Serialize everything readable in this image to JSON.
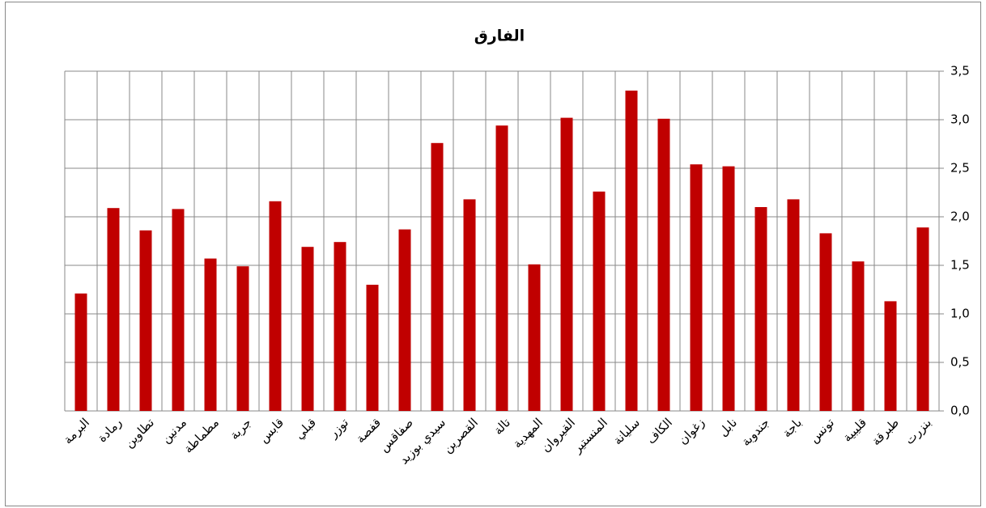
{
  "chart_data": {
    "type": "bar",
    "title": "الفارق",
    "categories": [
      "البرمة",
      "رمادة",
      "تطاوين",
      "مدنين",
      "مطماطة",
      "جربة",
      "قابس",
      "قبلي",
      "توزر",
      "قفصة",
      "صفاقس",
      "سيدي بوزيد",
      "القصرين",
      "تالة",
      "المهدية",
      "القيروان",
      "المنستير",
      "سليانة",
      "الكاف",
      "زغوان",
      "نابل",
      "جندوبة",
      "باجة",
      "تونس",
      "قليبية",
      "طبرقة",
      "بنزرت"
    ],
    "values": [
      1.21,
      2.09,
      1.86,
      2.08,
      1.57,
      1.49,
      2.16,
      1.69,
      1.74,
      1.3,
      1.87,
      2.76,
      2.18,
      2.94,
      1.51,
      3.02,
      2.26,
      3.3,
      3.01,
      2.54,
      2.52,
      2.1,
      2.18,
      1.83,
      1.54,
      1.13,
      1.89
    ],
    "color": "#c00000",
    "ylim": [
      0,
      3.5
    ],
    "yticks": [
      {
        "value": 0,
        "label": "0,0"
      },
      {
        "value": 0.5,
        "label": "0,5"
      },
      {
        "value": 1,
        "label": "1,0"
      },
      {
        "value": 1.5,
        "label": "1,5"
      },
      {
        "value": 2,
        "label": "2,0"
      },
      {
        "value": 2.5,
        "label": "2,5"
      },
      {
        "value": 3,
        "label": "3,0"
      },
      {
        "value": 3.5,
        "label": "3,5"
      }
    ],
    "grid": true
  }
}
